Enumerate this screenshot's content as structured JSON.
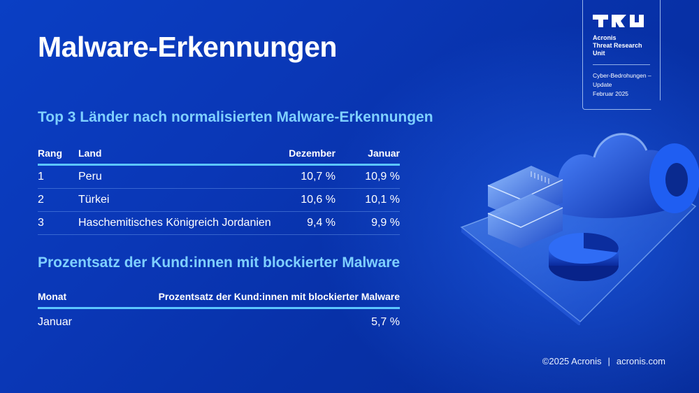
{
  "title": "Malware-Erkennungen",
  "badge": {
    "org_line1": "Acronis",
    "org_line2": "Threat Research",
    "org_line3": "Unit",
    "report_line1": "Cyber-Bedrohungen –",
    "report_line2": "Update",
    "report_line3": "Februar 2025"
  },
  "section1": {
    "heading": "Top 3 Länder nach normalisierten Malware-Erkennungen",
    "columns": [
      "Rang",
      "Land",
      "Dezember",
      "Januar"
    ],
    "rows": [
      [
        "1",
        "Peru",
        "10,7 %",
        "10,9 %"
      ],
      [
        "2",
        "Türkei",
        "10,6 %",
        "10,1 %"
      ],
      [
        "3",
        "Haschemitisches Königreich Jordanien",
        "9,4 %",
        "9,9 %"
      ]
    ]
  },
  "section2": {
    "heading": "Prozentsatz der Kund:innen mit blockierter Malware",
    "columns": [
      "Monat",
      "Prozentsatz der Kund:innen mit blockierter Malware"
    ],
    "rows": [
      [
        "Januar",
        "5,7 %"
      ]
    ]
  },
  "footer": {
    "copyright": "©2025 Acronis",
    "separator": "|",
    "website": "acronis.com"
  },
  "colors": {
    "accent": "#7fd0ff",
    "rule": "#5cc6ff",
    "background": "#0a37b6"
  },
  "icons": [
    "tru-logo-icon",
    "server-icon",
    "cloud-icon",
    "pie-chart-icon",
    "donut-icon"
  ]
}
